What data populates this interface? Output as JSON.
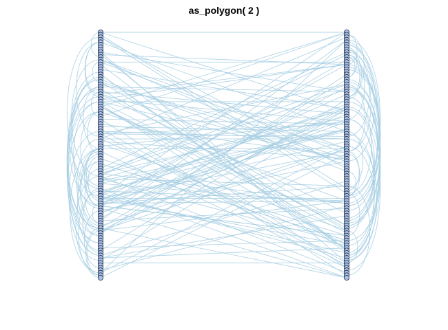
{
  "title": "as_polygon( 2 )",
  "graph": {
    "layout": "two-column",
    "nodes_per_column": 100,
    "edge_count": 200,
    "colors": {
      "edge": "#a6cee3",
      "node_fill": "#a9c0e6",
      "node_stroke": "#1f2b44",
      "background": "#ffffff"
    }
  }
}
